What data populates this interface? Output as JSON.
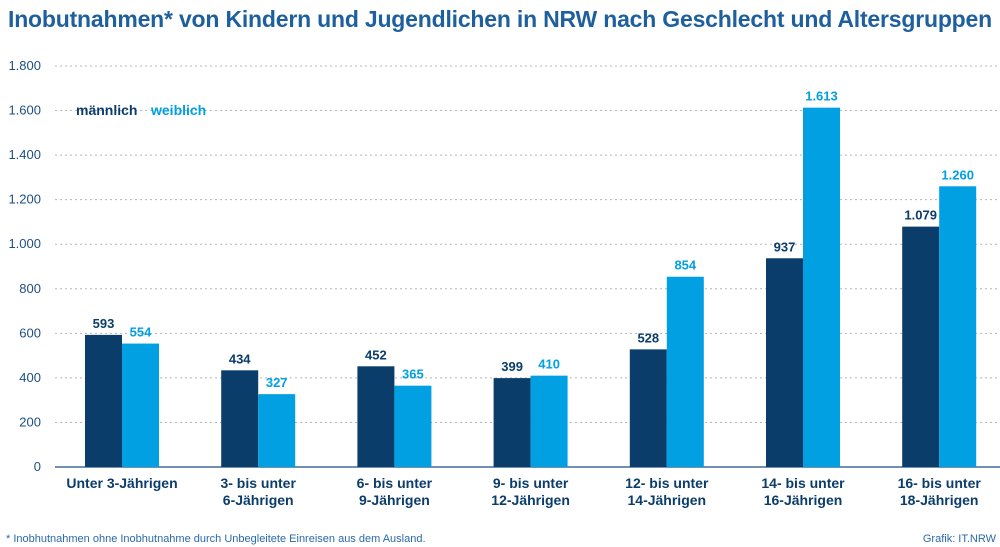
{
  "title": "Inobutnahmen* von Kindern und Jugendlichen in NRW nach Geschlecht und Altersgruppen",
  "footnote": "* Inobhutnahmen ohne Inobhutnahme durch Unbegleitete Einreisen aus dem Ausland.",
  "credit": "Grafik: IT.NRW",
  "colors": {
    "maennlich": "#0b3d6b",
    "weiblich": "#00a0e3",
    "grid": "#b5b5b5",
    "axis": "#1e4f82",
    "title": "#1e5f9e"
  },
  "chart_data": {
    "type": "bar",
    "title": "Inobutnahmen* von Kindern und Jugendlichen in NRW nach Geschlecht und Altersgruppen",
    "xlabel": "",
    "ylabel": "",
    "ylim": [
      0,
      1800
    ],
    "yticks": [
      0,
      200,
      400,
      600,
      800,
      1000,
      1200,
      1400,
      1600,
      1800
    ],
    "ytick_labels": [
      "0",
      "200",
      "400",
      "600",
      "800",
      "1.000",
      "1.200",
      "1.400",
      "1.600",
      "1.800"
    ],
    "grid": true,
    "legend_position": "top-left",
    "categories": [
      [
        "Unter 3-Jährigen"
      ],
      [
        "3- bis unter",
        "6-Jährigen"
      ],
      [
        "6- bis unter",
        "9-Jährigen"
      ],
      [
        "9- bis unter",
        "12-Jährigen"
      ],
      [
        "12- bis unter",
        "14-Jährigen"
      ],
      [
        "14- bis unter",
        "16-Jährigen"
      ],
      [
        "16- bis unter",
        "18-Jährigen"
      ]
    ],
    "series": [
      {
        "name": "männlich",
        "values": [
          593,
          434,
          452,
          399,
          528,
          937,
          1079
        ],
        "labels": [
          "593",
          "434",
          "452",
          "399",
          "528",
          "937",
          "1.079"
        ]
      },
      {
        "name": "weiblich",
        "values": [
          554,
          327,
          365,
          410,
          854,
          1613,
          1260
        ],
        "labels": [
          "554",
          "327",
          "365",
          "410",
          "854",
          "1.613",
          "1.260"
        ]
      }
    ]
  }
}
